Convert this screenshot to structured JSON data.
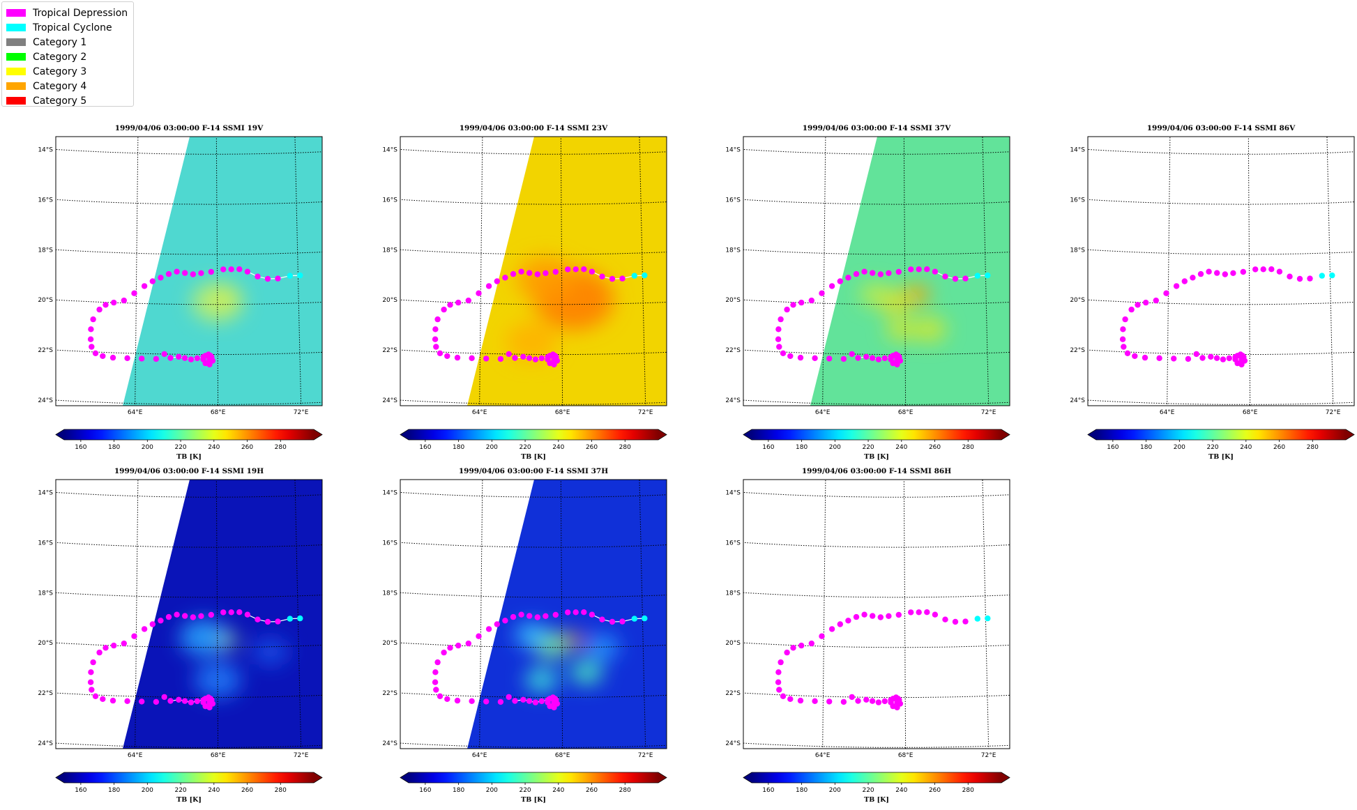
{
  "legend": [
    {
      "label": "Tropical Depression",
      "color": "#ff00ff"
    },
    {
      "label": "Tropical Cyclone",
      "color": "#00ffff"
    },
    {
      "label": "Category 1",
      "color": "#808080"
    },
    {
      "label": "Category 2",
      "color": "#00ff00"
    },
    {
      "label": "Category 3",
      "color": "#ffff00"
    },
    {
      "label": "Category 4",
      "color": "#ffa500"
    },
    {
      "label": "Category 5",
      "color": "#ff0000"
    }
  ],
  "map": {
    "lat_labels": [
      "14°S",
      "16°S",
      "18°S",
      "20°S",
      "22°S",
      "24°S"
    ],
    "lon_labels": [
      "64°E",
      "68°E",
      "72°E"
    ],
    "colorbar_ticks": [
      "160",
      "180",
      "200",
      "220",
      "240",
      "260",
      "280"
    ],
    "colorbar_label": "TB [K]",
    "colormap": "jet",
    "tb_range": [
      150,
      300
    ]
  },
  "panels": [
    {
      "title": "1999/04/06 03:00:00  F-14 SSMI 19V",
      "base": "#4fd8d0",
      "swath": true,
      "hot": [
        [
          68.4,
          -19.7,
          "#f0e020",
          0.8
        ],
        [
          68.0,
          -19.9,
          "#c8f060",
          1.4
        ]
      ]
    },
    {
      "title": "1999/04/06 03:00:00  F-14 SSMI 23V",
      "base": "#f2d400",
      "swath": true,
      "hot": [
        [
          68.6,
          -19.8,
          "#ff7a00",
          2.2
        ],
        [
          67.2,
          -19.0,
          "#ff9a00",
          1.6
        ],
        [
          66.5,
          -21.5,
          "#ffb000",
          1.4
        ]
      ]
    },
    {
      "title": "1999/04/06 03:00:00  F-14 SSMI 37V",
      "base": "#62e39a",
      "swath": true,
      "hot": [
        [
          68.6,
          -19.6,
          "#ffa000",
          0.7
        ],
        [
          67.5,
          -19.9,
          "#e8e020",
          0.9
        ],
        [
          69.2,
          -21.0,
          "#d8e828",
          0.9
        ],
        [
          67.8,
          -21.0,
          "#d8e828",
          0.8
        ],
        [
          66.5,
          -19.6,
          "#c8ec40",
          0.8
        ]
      ]
    },
    {
      "title": "1999/04/06 03:00:00  F-14 SSMI 86V",
      "base": "none",
      "swath": false,
      "hot": []
    },
    {
      "title": "1999/04/06 03:00:00  F-14 SSMI 19H",
      "base": "#0a14b8",
      "swath": true,
      "hot": [
        [
          68.3,
          -19.7,
          "#a8f080",
          0.7
        ],
        [
          67.3,
          -19.6,
          "#2aa8ff",
          1.3
        ],
        [
          68.0,
          -21.3,
          "#1e7cf8",
          1.3
        ],
        [
          70.6,
          -20.2,
          "#1a50e8",
          1.0
        ]
      ]
    },
    {
      "title": "1999/04/06 03:00:00  F-14 SSMI 37H",
      "base": "#1030d8",
      "swath": true,
      "hot": [
        [
          68.6,
          -19.7,
          "#ff8a00",
          0.5
        ],
        [
          67.5,
          -19.9,
          "#7df090",
          1.0
        ],
        [
          69.2,
          -21.0,
          "#4ef0c0",
          0.9
        ],
        [
          67.0,
          -21.3,
          "#40e8d8",
          0.9
        ],
        [
          66.5,
          -19.5,
          "#38c8ff",
          0.9
        ],
        [
          70.0,
          -20.0,
          "#2aa0ff",
          0.9
        ]
      ]
    },
    {
      "title": "1999/04/06 03:00:00  F-14 SSMI 86H",
      "base": "none",
      "swath": false,
      "hot": []
    }
  ],
  "track": [
    [
      72.1,
      -18.9,
      "TC"
    ],
    [
      71.6,
      -18.9,
      "TC"
    ],
    [
      71.0,
      -19.0,
      "TD"
    ],
    [
      70.5,
      -19.0,
      "TD"
    ],
    [
      70.0,
      -18.9,
      "TD"
    ],
    [
      69.5,
      -18.7,
      "TD"
    ],
    [
      69.1,
      -18.6,
      "TD"
    ],
    [
      68.7,
      -18.6,
      "TD"
    ],
    [
      68.3,
      -18.6,
      "TD"
    ],
    [
      67.7,
      -18.7,
      "TD"
    ],
    [
      67.2,
      -18.75,
      "TD"
    ],
    [
      66.8,
      -18.8,
      "TD"
    ],
    [
      66.4,
      -18.75,
      "TD"
    ],
    [
      66.0,
      -18.7,
      "TD"
    ],
    [
      65.6,
      -18.8,
      "TD"
    ],
    [
      65.2,
      -18.95,
      "TD"
    ],
    [
      64.8,
      -19.1,
      "TD"
    ],
    [
      64.4,
      -19.3,
      "TD"
    ],
    [
      63.9,
      -19.6,
      "TD"
    ],
    [
      63.4,
      -19.9,
      "TD"
    ],
    [
      62.9,
      -20.0,
      "TD"
    ],
    [
      62.5,
      -20.1,
      "TD"
    ],
    [
      62.2,
      -20.3,
      "TD"
    ],
    [
      61.9,
      -20.7,
      "TD"
    ],
    [
      61.8,
      -21.1,
      "TD"
    ],
    [
      61.8,
      -21.5,
      "TD"
    ],
    [
      61.85,
      -21.8,
      "TD"
    ],
    [
      62.05,
      -22.05,
      "TD"
    ],
    [
      62.4,
      -22.15,
      "TD"
    ],
    [
      62.9,
      -22.2,
      "TD"
    ],
    [
      63.6,
      -22.2,
      "TD"
    ],
    [
      64.3,
      -22.2,
      "TD"
    ],
    [
      65.0,
      -22.2,
      "TD"
    ],
    [
      65.7,
      -22.15,
      "TD"
    ],
    [
      66.1,
      -22.1,
      "TD"
    ],
    [
      66.4,
      -22.15,
      "TD"
    ],
    [
      66.7,
      -22.2,
      "TD"
    ],
    [
      67.0,
      -22.15,
      "TD"
    ],
    [
      67.3,
      -22.1,
      "TD"
    ],
    [
      67.55,
      -22.05,
      "TD"
    ],
    [
      67.7,
      -22.1,
      "TD"
    ],
    [
      67.75,
      -22.25,
      "TD"
    ],
    [
      67.6,
      -22.4,
      "TD"
    ],
    [
      67.4,
      -22.35,
      "TD"
    ],
    [
      67.3,
      -22.2,
      "TD"
    ],
    [
      67.4,
      -22.05,
      "TD"
    ],
    [
      67.55,
      -22.0,
      "TD"
    ],
    [
      67.65,
      -22.05,
      "TD"
    ],
    [
      67.6,
      -22.2,
      "TD"
    ],
    [
      65.4,
      -22.0,
      "TD"
    ]
  ]
}
